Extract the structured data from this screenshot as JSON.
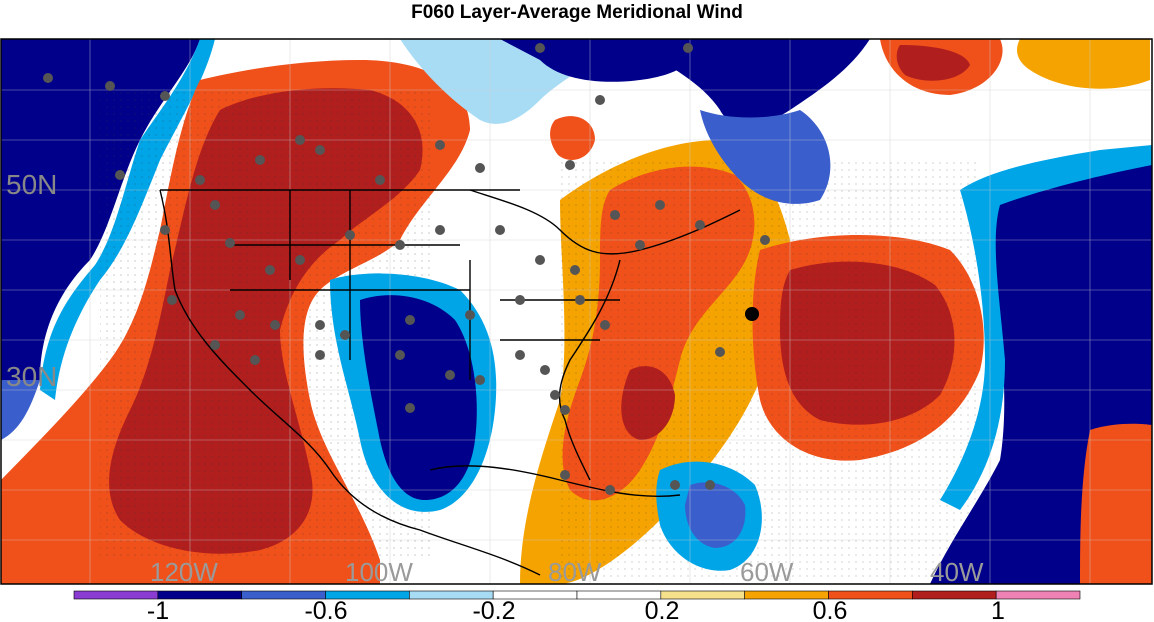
{
  "title": "F060 Layer-Average Meridional Wind",
  "map": {
    "lat_labels": [
      "50N",
      "30N"
    ],
    "lon_labels": [
      "120W",
      "100W",
      "80W",
      "60W",
      "40W"
    ]
  },
  "colorbar": {
    "tick_labels": [
      "-1",
      "-0.6",
      "-0.2",
      "0.2",
      "0.6",
      "1"
    ],
    "colors": [
      "#8a3bd1",
      "#00008b",
      "#3a5fcd",
      "#00a5e8",
      "#a8dcf5",
      "#ffffff",
      "#ffffff",
      "#f5e08c",
      "#f5a300",
      "#f0501a",
      "#b01e1e",
      "#ee82b4"
    ]
  },
  "colors": {
    "dark_red": "#b01e1e",
    "red_orange": "#f0501a",
    "orange": "#f5a300",
    "light_yellow": "#f5e08c",
    "light_blue": "#a8dcf5",
    "cyan": "#00a5e8",
    "mid_blue": "#3a5fcd",
    "navy": "#00008b",
    "station_dot": "#555555",
    "marker_dot": "#000000"
  }
}
